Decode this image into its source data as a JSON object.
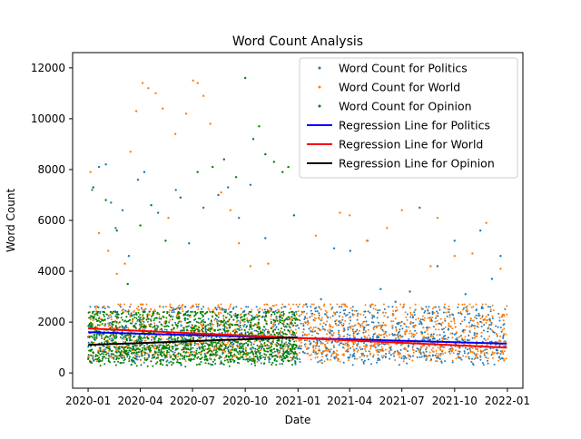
{
  "chart_data": {
    "type": "scatter",
    "title": "Word Count Analysis",
    "xlabel": "Date",
    "ylabel": "Word Count",
    "xlim": [
      "2019-12-05",
      "2022-01-28"
    ],
    "ylim": [
      -600,
      12600
    ],
    "x_ticks": [
      {
        "date": "2020-01-01",
        "label": "2020-01"
      },
      {
        "date": "2020-04-01",
        "label": "2020-04"
      },
      {
        "date": "2020-07-01",
        "label": "2020-07"
      },
      {
        "date": "2020-10-01",
        "label": "2020-10"
      },
      {
        "date": "2021-01-01",
        "label": "2021-01"
      },
      {
        "date": "2021-04-01",
        "label": "2021-04"
      },
      {
        "date": "2021-07-01",
        "label": "2021-07"
      },
      {
        "date": "2021-10-01",
        "label": "2021-10"
      },
      {
        "date": "2022-01-01",
        "label": "2022-01"
      }
    ],
    "y_ticks": [
      0,
      2000,
      4000,
      6000,
      8000,
      10000,
      12000
    ],
    "grid": false,
    "legend_position": "top-right",
    "series": [
      {
        "name": "Word Count for Politics",
        "kind": "points",
        "color": "#1f77b4",
        "samples": [
          [
            "2020-01-08",
            7200
          ],
          [
            "2020-01-20",
            8100
          ],
          [
            "2020-02-01",
            8200
          ],
          [
            "2020-02-10",
            6700
          ],
          [
            "2020-02-18",
            5700
          ],
          [
            "2020-03-01",
            6400
          ],
          [
            "2020-03-12",
            4600
          ],
          [
            "2020-03-28",
            7600
          ],
          [
            "2020-04-08",
            7900
          ],
          [
            "2020-05-02",
            6300
          ],
          [
            "2020-06-02",
            7200
          ],
          [
            "2020-06-25",
            5100
          ],
          [
            "2020-07-20",
            6500
          ],
          [
            "2020-08-15",
            7000
          ],
          [
            "2020-09-01",
            7300
          ],
          [
            "2020-09-20",
            6100
          ],
          [
            "2020-10-10",
            7400
          ],
          [
            "2020-11-05",
            5300
          ],
          [
            "2021-01-15",
            2700
          ],
          [
            "2021-02-10",
            2900
          ],
          [
            "2021-03-05",
            4900
          ],
          [
            "2021-04-02",
            4800
          ],
          [
            "2021-05-02",
            5200
          ],
          [
            "2021-05-25",
            3300
          ],
          [
            "2021-06-20",
            2800
          ],
          [
            "2021-07-15",
            3200
          ],
          [
            "2021-08-01",
            6500
          ],
          [
            "2021-09-01",
            4200
          ],
          [
            "2021-10-01",
            5200
          ],
          [
            "2021-10-20",
            3100
          ],
          [
            "2021-11-15",
            5600
          ],
          [
            "2021-12-05",
            3700
          ],
          [
            "2021-12-20",
            4600
          ]
        ]
      },
      {
        "name": "Word Count for World",
        "kind": "points",
        "color": "#ff7f0e",
        "samples": [
          [
            "2020-01-05",
            7900
          ],
          [
            "2020-01-20",
            5500
          ],
          [
            "2020-02-05",
            4800
          ],
          [
            "2020-02-20",
            3900
          ],
          [
            "2020-03-05",
            4300
          ],
          [
            "2020-03-15",
            8700
          ],
          [
            "2020-03-25",
            10300
          ],
          [
            "2020-04-05",
            11400
          ],
          [
            "2020-04-15",
            11200
          ],
          [
            "2020-04-28",
            11000
          ],
          [
            "2020-05-10",
            10400
          ],
          [
            "2020-05-20",
            6100
          ],
          [
            "2020-06-01",
            9400
          ],
          [
            "2020-06-20",
            10200
          ],
          [
            "2020-07-02",
            11500
          ],
          [
            "2020-07-10",
            11400
          ],
          [
            "2020-07-20",
            10900
          ],
          [
            "2020-08-01",
            9800
          ],
          [
            "2020-08-20",
            7100
          ],
          [
            "2020-09-05",
            6400
          ],
          [
            "2020-09-20",
            5100
          ],
          [
            "2020-10-10",
            4200
          ],
          [
            "2020-11-10",
            4300
          ],
          [
            "2021-02-01",
            5400
          ],
          [
            "2021-03-15",
            6300
          ],
          [
            "2021-04-01",
            6200
          ],
          [
            "2021-05-01",
            5200
          ],
          [
            "2021-06-05",
            5700
          ],
          [
            "2021-07-01",
            6400
          ],
          [
            "2021-08-20",
            4200
          ],
          [
            "2021-09-01",
            6100
          ],
          [
            "2021-10-01",
            4600
          ],
          [
            "2021-11-01",
            4700
          ],
          [
            "2021-11-25",
            5900
          ],
          [
            "2021-12-20",
            4100
          ]
        ]
      },
      {
        "name": "Word Count for Opinion",
        "kind": "points",
        "color": "#008000",
        "samples": [
          [
            "2020-01-10",
            7300
          ],
          [
            "2020-02-01",
            6800
          ],
          [
            "2020-02-20",
            5600
          ],
          [
            "2020-03-10",
            3500
          ],
          [
            "2020-04-01",
            5800
          ],
          [
            "2020-04-20",
            6600
          ],
          [
            "2020-05-15",
            5200
          ],
          [
            "2020-06-10",
            6900
          ],
          [
            "2020-07-10",
            7900
          ],
          [
            "2020-08-05",
            8100
          ],
          [
            "2020-08-25",
            8400
          ],
          [
            "2020-09-15",
            7700
          ],
          [
            "2020-10-01",
            11600
          ],
          [
            "2020-10-15",
            9200
          ],
          [
            "2020-10-25",
            9700
          ],
          [
            "2020-11-05",
            8600
          ],
          [
            "2020-11-20",
            8300
          ],
          [
            "2020-12-05",
            7900
          ],
          [
            "2020-12-15",
            8100
          ],
          [
            "2020-12-25",
            6200
          ]
        ]
      },
      {
        "name": "Regression Line for Politics",
        "kind": "line",
        "color": "#0000ff",
        "points": [
          [
            "2020-01-01",
            1600
          ],
          [
            "2021-12-31",
            1150
          ]
        ]
      },
      {
        "name": "Regression Line for World",
        "kind": "line",
        "color": "#ff0000",
        "points": [
          [
            "2020-01-01",
            1750
          ],
          [
            "2021-12-31",
            1000
          ]
        ]
      },
      {
        "name": "Regression Line for Opinion",
        "kind": "line",
        "color": "#000000",
        "points": [
          [
            "2020-01-01",
            1100
          ],
          [
            "2020-12-31",
            1400
          ]
        ]
      }
    ],
    "dense_bands": [
      {
        "series": "Word Count for Politics",
        "color": "#1f77b4",
        "x_range": [
          "2020-01-01",
          "2021-12-31"
        ],
        "y_range": [
          150,
          2600
        ]
      },
      {
        "series": "Word Count for World",
        "color": "#ff7f0e",
        "x_range": [
          "2020-01-01",
          "2021-12-31"
        ],
        "y_range": [
          250,
          2700
        ]
      },
      {
        "series": "Word Count for Opinion",
        "color": "#008000",
        "x_range": [
          "2020-01-01",
          "2020-12-31"
        ],
        "y_range": [
          100,
          2400
        ]
      }
    ]
  }
}
